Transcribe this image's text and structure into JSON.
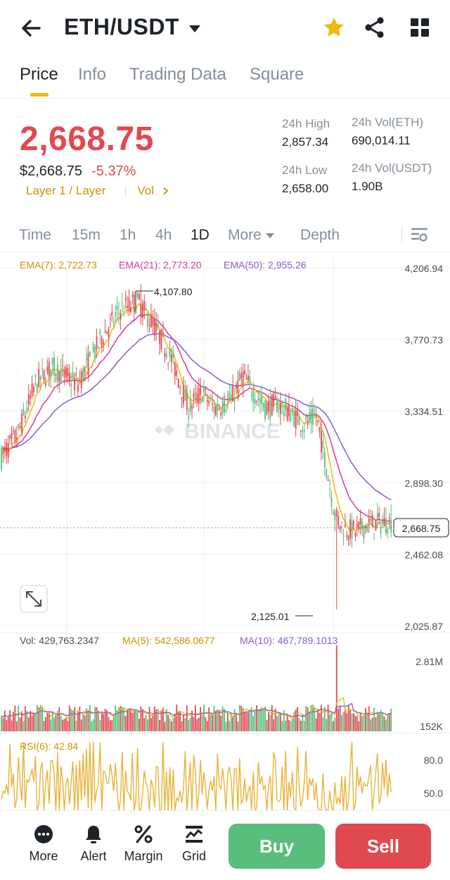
{
  "header": {
    "pair": "ETH/USDT",
    "icons": [
      "back-arrow-icon",
      "star-icon",
      "share-icon",
      "grid-icon"
    ],
    "star_color": "#f0b90b"
  },
  "tabs": [
    "Price",
    "Info",
    "Trading Data",
    "Square"
  ],
  "price": {
    "last": "2,668.75",
    "usd": "$2,668.75",
    "change": "-5.37%",
    "tag": "Layer 1 / Layer",
    "vol_link": "Vol",
    "high_label": "24h High",
    "high_value": "2,857.34",
    "low_label": "24h Low",
    "low_value": "2,658.00",
    "vol_eth_label": "24h Vol(ETH)",
    "vol_eth_value": "690,014.11",
    "vol_usdt_label": "24h Vol(USDT)",
    "vol_usdt_value": "1.90B"
  },
  "intervals": [
    "Time",
    "15m",
    "1h",
    "4h",
    "1D",
    "More",
    "Depth"
  ],
  "active_interval": "1D",
  "colors": {
    "up": "#58bd7d",
    "down": "#e0494f",
    "ema7": "#f0b90b",
    "ema21": "#d63a95",
    "ema50": "#8a5cc9",
    "accent": "#f0b90b",
    "rsi": "#e8b339"
  },
  "chart_data": {
    "type": "candlestick",
    "indicators": {
      "ema7": "EMA(7): 2,722.73",
      "ema21": "EMA(21): 2,773.20",
      "ema50": "EMA(50): 2,955.26"
    },
    "y_ticks": [
      "4,206.94",
      "3,770.73",
      "3,334.51",
      "2,898.30",
      "2,462.08",
      "2,025.87"
    ],
    "y_tick_values": [
      4206.94,
      3770.73,
      3334.51,
      2898.3,
      2462.08,
      2025.87
    ],
    "ylim": [
      2025.87,
      4206.94
    ],
    "high_marker": "4,107.80",
    "high_value": 4107.8,
    "low_marker": "2,125.01",
    "low_value": 2125.01,
    "last_price_label": "2,668.75",
    "last_price_value": 2668.75,
    "watermark": "BINANCE",
    "volume": {
      "label": "Vol: 429,763.2347",
      "ma5": "MA(5): 542,586.0677",
      "ma10": "MA(10): 467,789.1013",
      "ticks": [
        "2.81M",
        "152K"
      ]
    },
    "rsi": {
      "label": "RSI(6): 42.84",
      "ticks": [
        "80.0",
        "50.0"
      ]
    }
  },
  "bottom": {
    "nav": [
      "More",
      "Alert",
      "Margin",
      "Grid"
    ],
    "buy": "Buy",
    "sell": "Sell"
  }
}
